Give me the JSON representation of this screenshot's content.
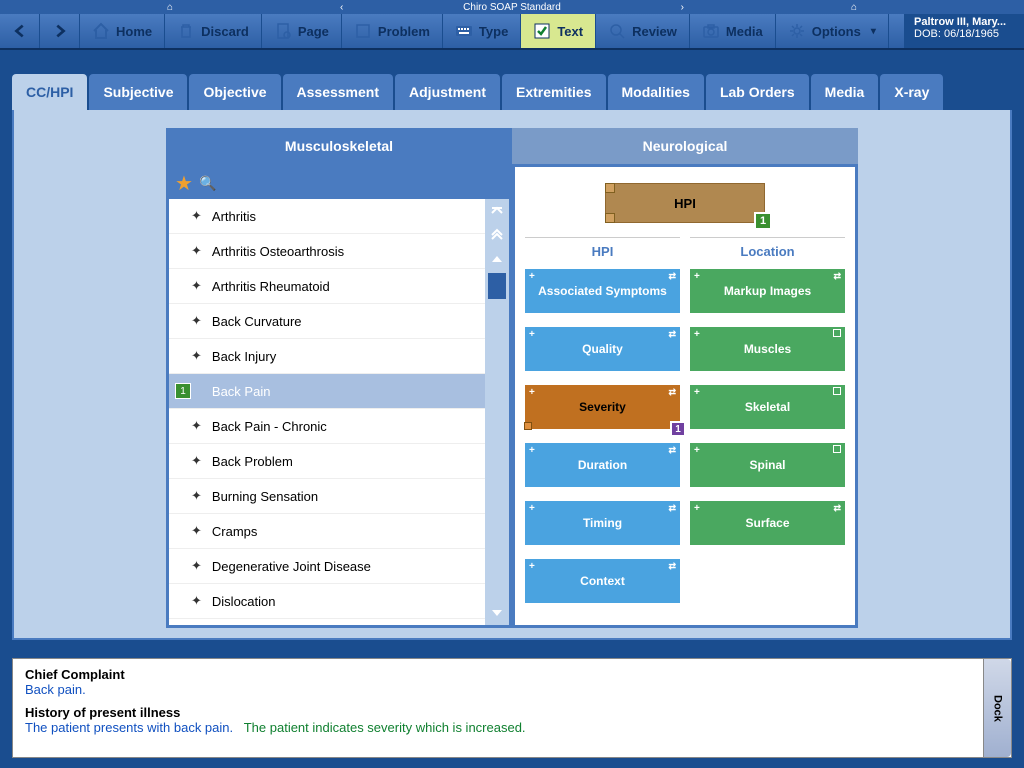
{
  "app_title": "Chiro SOAP Standard",
  "patient": {
    "name": "Paltrow III, Mary...",
    "dob_label": "DOB:",
    "dob": "06/18/1965"
  },
  "toolbar": {
    "home": "Home",
    "discard": "Discard",
    "page": "Page",
    "problem": "Problem",
    "type": "Type",
    "text": "Text",
    "review": "Review",
    "media": "Media",
    "options": "Options"
  },
  "tabs": [
    "CC/HPI",
    "Subjective",
    "Objective",
    "Assessment",
    "Adjustment",
    "Extremities",
    "Modalities",
    "Lab Orders",
    "Media",
    "X-ray"
  ],
  "active_tab": 0,
  "category_tabs": {
    "left": "Musculoskeletal",
    "right": "Neurological"
  },
  "conditions": [
    "Arthritis",
    "Arthritis Osteoarthrosis",
    "Arthritis Rheumatoid",
    "Back Curvature",
    "Back Injury",
    "Back Pain",
    "Back Pain - Chronic",
    "Back Problem",
    "Burning Sensation",
    "Cramps",
    "Degenerative Joint Disease",
    "Dislocation"
  ],
  "selected_condition_index": 5,
  "selected_badge": "1",
  "hpi_header": {
    "label": "HPI",
    "badge": "1"
  },
  "hpi_columns": {
    "left": {
      "head": "HPI",
      "buttons": [
        "Associated Symptoms",
        "Quality",
        "Severity",
        "Duration",
        "Timing",
        "Context"
      ]
    },
    "right": {
      "head": "Location",
      "buttons": [
        "Markup Images",
        "Muscles",
        "Skeletal",
        "Spinal",
        "Surface"
      ]
    }
  },
  "severity_badge": "1",
  "note": {
    "cc_head": "Chief Complaint",
    "cc_text": "Back pain.",
    "hpi_head": "History of present illness",
    "hpi_text1": "The patient presents with back pain.",
    "hpi_text2": "The patient indicates severity which is increased."
  },
  "dock": "Dock",
  "colors": {
    "primary": "#4a7bc0",
    "dark": "#2d5fa5",
    "bg": "#1a4d8f",
    "panel_bg": "#bcd1ea",
    "btn_blue": "#4aa3e0",
    "btn_green": "#4aa860",
    "btn_orange": "#c07020",
    "hpi_box": "#b08850"
  }
}
